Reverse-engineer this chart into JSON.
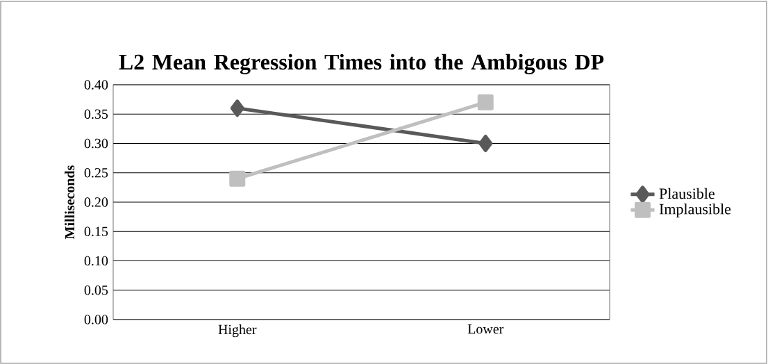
{
  "chart_data": {
    "type": "line",
    "title": "L2 Mean Regression Times into the Ambigous DP",
    "ylabel": "Milliseconds",
    "categories": [
      "Higher",
      "Lower"
    ],
    "series": [
      {
        "name": "Plausible",
        "color": "#595959",
        "values": [
          0.36,
          0.3
        ],
        "marker": "diamond"
      },
      {
        "name": "Implausible",
        "color": "#bfbfbf",
        "values": [
          0.24,
          0.37
        ],
        "marker": "square"
      }
    ],
    "ylim": [
      0,
      0.4
    ],
    "yticks": [
      {
        "value": 0,
        "label": "0.00"
      },
      {
        "value": 0.05,
        "label": "0.05"
      },
      {
        "value": 0.1,
        "label": "0.10"
      },
      {
        "value": 0.15,
        "label": "0.15"
      },
      {
        "value": 0.2,
        "label": "0.20"
      },
      {
        "value": 0.25,
        "label": "0.25"
      },
      {
        "value": 0.3,
        "label": "0.30"
      },
      {
        "value": 0.35,
        "label": "0.35"
      },
      {
        "value": 0.4,
        "label": "0.40"
      }
    ],
    "grid": "y",
    "legend": "right"
  }
}
